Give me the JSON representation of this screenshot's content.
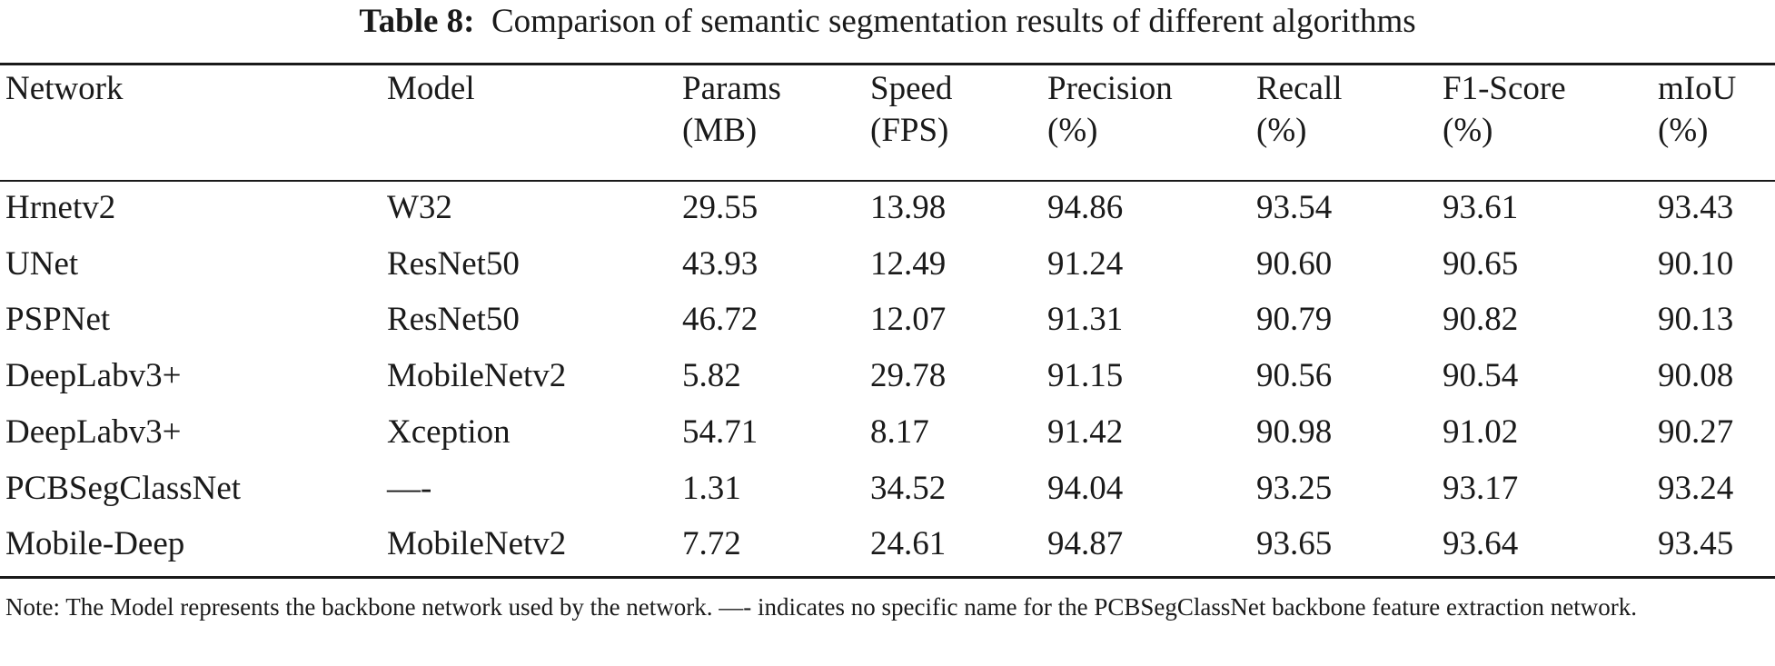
{
  "caption": {
    "label": "Table 8:",
    "text": "Comparison of semantic segmentation results of different algorithms"
  },
  "header": {
    "network": "Network",
    "model": "Model",
    "params": [
      "Params",
      "(MB)"
    ],
    "speed": [
      "Speed",
      "(FPS)"
    ],
    "precision": [
      "Precision",
      "(%)"
    ],
    "recall": [
      "Recall",
      "(%)"
    ],
    "f1": [
      "F1-Score",
      "(%)"
    ],
    "miou": [
      "mIoU",
      "(%)"
    ]
  },
  "rows": [
    {
      "network": "Hrnetv2",
      "model": "W32",
      "params": "29.55",
      "speed": "13.98",
      "precision": "94.86",
      "recall": "93.54",
      "f1": "93.61",
      "miou": "93.43"
    },
    {
      "network": "UNet",
      "model": "ResNet50",
      "params": "43.93",
      "speed": "12.49",
      "precision": "91.24",
      "recall": "90.60",
      "f1": "90.65",
      "miou": "90.10"
    },
    {
      "network": "PSPNet",
      "model": "ResNet50",
      "params": "46.72",
      "speed": "12.07",
      "precision": "91.31",
      "recall": "90.79",
      "f1": "90.82",
      "miou": "90.13"
    },
    {
      "network": "DeepLabv3+",
      "model": "MobileNetv2",
      "params": "5.82",
      "speed": "29.78",
      "precision": "91.15",
      "recall": "90.56",
      "f1": "90.54",
      "miou": "90.08"
    },
    {
      "network": "DeepLabv3+",
      "model": "Xception",
      "params": "54.71",
      "speed": "8.17",
      "precision": "91.42",
      "recall": "90.98",
      "f1": "91.02",
      "miou": "90.27"
    },
    {
      "network": "PCBSegClassNet",
      "model": "—-",
      "params": "1.31",
      "speed": "34.52",
      "precision": "94.04",
      "recall": "93.25",
      "f1": "93.17",
      "miou": "93.24"
    },
    {
      "network": "Mobile-Deep",
      "model": "MobileNetv2",
      "params": "7.72",
      "speed": "24.61",
      "precision": "94.87",
      "recall": "93.65",
      "f1": "93.64",
      "miou": "93.45"
    }
  ],
  "note": "Note: The Model represents the backbone network used by the network. —- indicates no specific name for the PCBSegClassNet backbone feature extraction network."
}
